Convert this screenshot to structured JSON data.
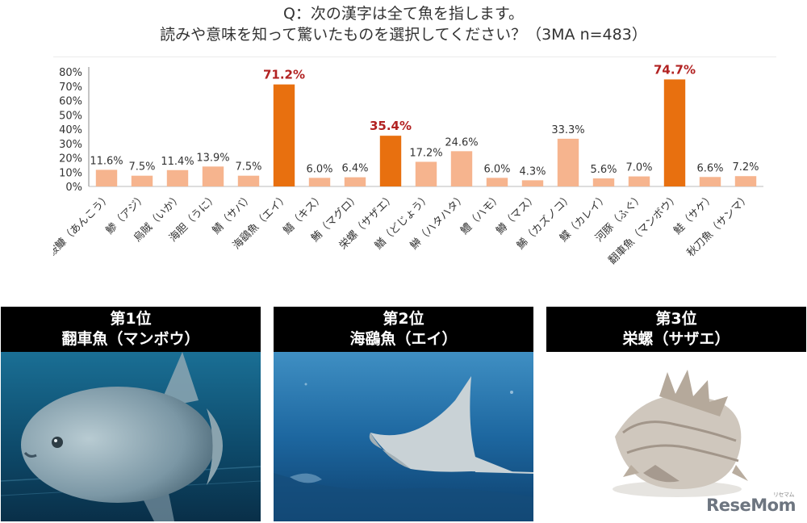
{
  "question": {
    "line1": "Q：次の漢字は全て魚を指します。",
    "line2": "読みや意味を知って驚いたものを選択してください？（3MA n=483）"
  },
  "colors": {
    "highlight": "#E8700F",
    "normal": "#F6B48E",
    "highlight_label": "#B22222",
    "normal_label": "#333333"
  },
  "chart_data": {
    "type": "bar",
    "categories": [
      "鮟鱇（あんこう）",
      "鯵（アジ）",
      "烏賊（いか）",
      "海胆（うに）",
      "鯖（サバ）",
      "海鷂魚（エイ）",
      "鱚（キス）",
      "鮪（マグロ）",
      "栄螺（サザエ）",
      "鰌（どじょう）",
      "鰰（ハタハタ）",
      "鱧（ハモ）",
      "鱒（マス）",
      "鯑（カズノコ）",
      "鰈（カレイ）",
      "河豚（ふぐ）",
      "翻車魚（マンボウ）",
      "鮭（サケ）",
      "秋刀魚（サンマ）"
    ],
    "values": [
      11.6,
      7.5,
      11.4,
      13.9,
      7.5,
      71.2,
      6.0,
      6.4,
      35.4,
      17.2,
      24.6,
      6.0,
      4.3,
      33.3,
      5.6,
      7.0,
      74.7,
      6.6,
      7.2
    ],
    "value_labels": [
      "11.6%",
      "7.5%",
      "11.4%",
      "13.9%",
      "7.5%",
      "71.2%",
      "6.0%",
      "6.4%",
      "35.4%",
      "17.2%",
      "24.6%",
      "6.0%",
      "4.3%",
      "33.3%",
      "5.6%",
      "7.0%",
      "74.7%",
      "6.6%",
      "7.2%"
    ],
    "highlighted": [
      5,
      8,
      16
    ],
    "ylim": [
      0,
      80
    ],
    "yticks": [
      "0%",
      "10%",
      "20%",
      "30%",
      "40%",
      "50%",
      "60%",
      "70%",
      "80%"
    ],
    "grid": false,
    "title": "",
    "xlabel": "",
    "ylabel": ""
  },
  "ranking": [
    {
      "rank": "第1位",
      "name": "翻車魚（マンボウ）",
      "photo_icon": "sunfish-photo"
    },
    {
      "rank": "第2位",
      "name": "海鷂魚（エイ）",
      "photo_icon": "manta-ray-photo"
    },
    {
      "rank": "第3位",
      "name": "栄螺（サザエ）",
      "photo_icon": "turban-shell-photo"
    }
  ],
  "logo": {
    "text": "ReseMom",
    "small": "リセマム"
  }
}
